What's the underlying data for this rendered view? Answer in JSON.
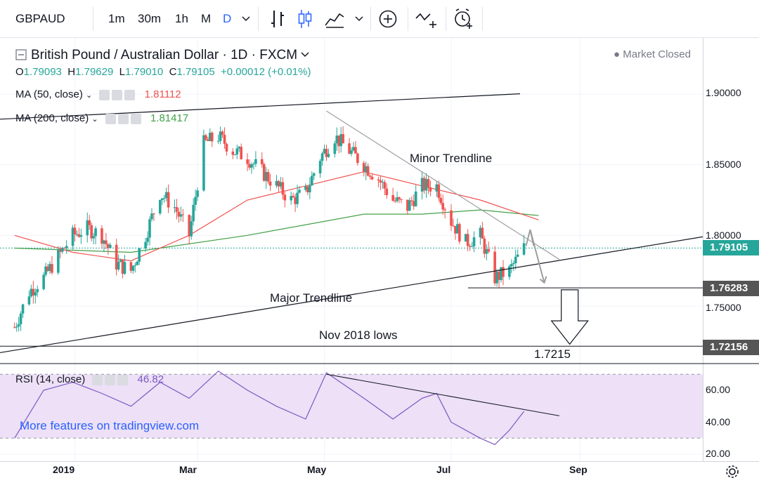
{
  "toolbar": {
    "symbol": "GBPAUD",
    "timeframes": [
      "1m",
      "30m",
      "1h",
      "M",
      "D"
    ],
    "active_timeframe": "D",
    "icons": [
      "chevron-down-icon",
      "bar-chart-icon",
      "candle-chart-icon",
      "area-chart-icon",
      "chevron-down-icon",
      "add-indicator-icon",
      "compare-icon",
      "alert-icon"
    ]
  },
  "header": {
    "title": "British Pound / Australian Dollar · 1D · FXCM",
    "market_status": "Market Closed",
    "ohlc": {
      "o_label": "O",
      "o": "1.79093",
      "h_label": "H",
      "h": "1.79629",
      "l_label": "L",
      "l": "1.79010",
      "c_label": "C",
      "c": "1.79105",
      "change": "+0.00012 (+0.01%)"
    }
  },
  "indicators": {
    "ma50": {
      "label": "MA (50, close)",
      "value": "1.81112",
      "color": "#ef5350"
    },
    "ma200": {
      "label": "MA (200, close)",
      "value": "1.81417",
      "color": "#43a047"
    },
    "rsi": {
      "label": "RSI (14, close)",
      "value": "46.82",
      "color": "#7e57c2"
    }
  },
  "price_axis": {
    "ticks": [
      "1.90000",
      "1.85000",
      "1.80000",
      "1.75000"
    ],
    "current_price": "1.79105",
    "levels": [
      "1.76283",
      "1.72156"
    ]
  },
  "rsi_axis": {
    "ticks": [
      "60.00",
      "40.00",
      "20.00"
    ]
  },
  "time_axis": {
    "labels": [
      "2019",
      "Mar",
      "May",
      "Jul",
      "Sep"
    ]
  },
  "annotations": {
    "minor": "Minor Trendline",
    "major": "Major Trendline",
    "nov_lows": "Nov 2018 lows",
    "target": "1.7215"
  },
  "watermark": "More features on tradingview.com",
  "colors": {
    "up": "#26a69a",
    "down": "#ef5350",
    "accent": "#2962ff",
    "rsi_band": "#ede0f7",
    "level_tag": "#555555"
  },
  "chart_data": [
    {
      "type": "candlestick",
      "title": "British Pound / Australian Dollar · 1D · FXCM",
      "x_labels": [
        "2019",
        "Mar",
        "May",
        "Jul",
        "Sep"
      ],
      "ylim": [
        1.715,
        1.915
      ],
      "y_ticks": [
        1.9,
        1.85,
        1.8,
        1.75
      ],
      "close_path": [
        [
          "2018-12-03",
          1.735
        ],
        [
          "2018-12-10",
          1.76
        ],
        [
          "2018-12-17",
          1.77
        ],
        [
          "2018-12-24",
          1.785
        ],
        [
          "2018-12-31",
          1.8
        ],
        [
          "2019-01-07",
          1.805
        ],
        [
          "2019-01-14",
          1.8
        ],
        [
          "2019-01-21",
          1.78
        ],
        [
          "2019-01-28",
          1.775
        ],
        [
          "2019-02-04",
          1.8
        ],
        [
          "2019-02-11",
          1.83
        ],
        [
          "2019-02-18",
          1.82
        ],
        [
          "2019-02-25",
          1.8
        ],
        [
          "2019-03-04",
          1.865
        ],
        [
          "2019-03-11",
          1.87
        ],
        [
          "2019-03-18",
          1.86
        ],
        [
          "2019-03-25",
          1.855
        ],
        [
          "2019-04-01",
          1.845
        ],
        [
          "2019-04-08",
          1.835
        ],
        [
          "2019-04-15",
          1.825
        ],
        [
          "2019-04-22",
          1.83
        ],
        [
          "2019-04-29",
          1.855
        ],
        [
          "2019-05-06",
          1.87
        ],
        [
          "2019-05-13",
          1.86
        ],
        [
          "2019-05-20",
          1.85
        ],
        [
          "2019-05-27",
          1.84
        ],
        [
          "2019-06-03",
          1.825
        ],
        [
          "2019-06-10",
          1.82
        ],
        [
          "2019-06-17",
          1.835
        ],
        [
          "2019-06-24",
          1.835
        ],
        [
          "2019-07-01",
          1.81
        ],
        [
          "2019-07-08",
          1.795
        ],
        [
          "2019-07-15",
          1.8
        ],
        [
          "2019-07-22",
          1.77
        ],
        [
          "2019-07-29",
          1.775
        ],
        [
          "2019-08-05",
          1.791
        ]
      ],
      "ma50_path": [
        [
          "2018-12-03",
          1.8
        ],
        [
          "2018-12-31",
          1.788
        ],
        [
          "2019-01-28",
          1.782
        ],
        [
          "2019-02-25",
          1.8
        ],
        [
          "2019-03-25",
          1.825
        ],
        [
          "2019-04-22",
          1.835
        ],
        [
          "2019-05-20",
          1.845
        ],
        [
          "2019-06-17",
          1.835
        ],
        [
          "2019-07-15",
          1.825
        ],
        [
          "2019-08-12",
          1.811
        ]
      ],
      "ma200_path": [
        [
          "2018-12-03",
          1.791
        ],
        [
          "2019-01-28",
          1.788
        ],
        [
          "2019-03-25",
          1.8
        ],
        [
          "2019-05-20",
          1.815
        ],
        [
          "2019-06-17",
          1.815
        ],
        [
          "2019-07-15",
          1.818
        ],
        [
          "2019-08-12",
          1.814
        ]
      ],
      "trendlines": [
        {
          "name": "Minor Trendline",
          "from": [
            "2019-05-02",
            1.888
          ],
          "to": [
            "2019-08-22",
            1.783
          ]
        },
        {
          "name": "Major Trendline",
          "from": [
            "2018-11-26",
            1.717
          ],
          "to": [
            "2019-10-30",
            1.799
          ]
        }
      ],
      "horizontal_levels": [
        1.76283,
        1.72156
      ],
      "last_close": 1.79105
    },
    {
      "type": "line",
      "title": "RSI (14, close)",
      "ylim": [
        15,
        75
      ],
      "y_ticks": [
        60,
        40,
        20
      ],
      "band": [
        30,
        70
      ],
      "series": [
        {
          "name": "RSI (14, close)",
          "points": [
            [
              "2018-12-03",
              30
            ],
            [
              "2018-12-17",
              60
            ],
            [
              "2018-12-31",
              65
            ],
            [
              "2019-01-14",
              58
            ],
            [
              "2019-01-28",
              50
            ],
            [
              "2019-02-11",
              65
            ],
            [
              "2019-02-25",
              55
            ],
            [
              "2019-03-11",
              72
            ],
            [
              "2019-03-25",
              60
            ],
            [
              "2019-04-08",
              50
            ],
            [
              "2019-04-22",
              42
            ],
            [
              "2019-05-02",
              71
            ],
            [
              "2019-05-20",
              55
            ],
            [
              "2019-06-03",
              42
            ],
            [
              "2019-06-17",
              55
            ],
            [
              "2019-06-24",
              58
            ],
            [
              "2019-07-01",
              40
            ],
            [
              "2019-07-15",
              30
            ],
            [
              "2019-07-22",
              26
            ],
            [
              "2019-07-29",
              35
            ],
            [
              "2019-08-05",
              46.82
            ]
          ]
        }
      ],
      "trendline": {
        "from": [
          "2019-05-02",
          70
        ],
        "to": [
          "2019-08-22",
          44
        ]
      }
    }
  ]
}
